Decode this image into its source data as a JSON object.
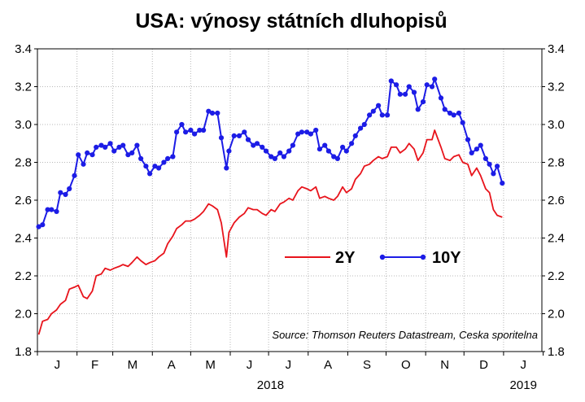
{
  "chart_data": {
    "type": "line",
    "title": "USA: výnosy státních dluhopisů",
    "source": "Source: Thomson Reuters Datastream, Ceska sporitelna",
    "x_month_labels": [
      "J",
      "F",
      "M",
      "A",
      "M",
      "J",
      "J",
      "A",
      "S",
      "O",
      "N",
      "D",
      "J"
    ],
    "year_labels": [
      "2018",
      "2019"
    ],
    "y_ticks": [
      "1.8",
      "2.0",
      "2.2",
      "2.4",
      "2.6",
      "2.8",
      "3.0",
      "3.2",
      "3.4"
    ],
    "ylim": [
      1.8,
      3.4
    ],
    "xlim": [
      "2018-01-01",
      "2019-01-31"
    ],
    "grid": true,
    "legend_position": "center-right",
    "series": [
      {
        "name": "2Y",
        "color": "#e8141c",
        "markers": false,
        "points": [
          [
            "2018-01-02",
            1.89
          ],
          [
            "2018-01-05",
            1.96
          ],
          [
            "2018-01-09",
            1.97
          ],
          [
            "2018-01-12",
            2.0
          ],
          [
            "2018-01-16",
            2.02
          ],
          [
            "2018-01-19",
            2.05
          ],
          [
            "2018-01-23",
            2.07
          ],
          [
            "2018-01-26",
            2.13
          ],
          [
            "2018-01-30",
            2.14
          ],
          [
            "2018-02-02",
            2.15
          ],
          [
            "2018-02-06",
            2.09
          ],
          [
            "2018-02-09",
            2.08
          ],
          [
            "2018-02-13",
            2.12
          ],
          [
            "2018-02-16",
            2.2
          ],
          [
            "2018-02-20",
            2.21
          ],
          [
            "2018-02-23",
            2.24
          ],
          [
            "2018-02-27",
            2.23
          ],
          [
            "2018-03-02",
            2.24
          ],
          [
            "2018-03-06",
            2.25
          ],
          [
            "2018-03-09",
            2.26
          ],
          [
            "2018-03-13",
            2.25
          ],
          [
            "2018-03-16",
            2.27
          ],
          [
            "2018-03-20",
            2.3
          ],
          [
            "2018-03-23",
            2.28
          ],
          [
            "2018-03-27",
            2.26
          ],
          [
            "2018-03-30",
            2.27
          ],
          [
            "2018-04-03",
            2.28
          ],
          [
            "2018-04-06",
            2.3
          ],
          [
            "2018-04-10",
            2.32
          ],
          [
            "2018-04-13",
            2.37
          ],
          [
            "2018-04-17",
            2.41
          ],
          [
            "2018-04-20",
            2.45
          ],
          [
            "2018-04-24",
            2.47
          ],
          [
            "2018-04-27",
            2.49
          ],
          [
            "2018-05-01",
            2.49
          ],
          [
            "2018-05-04",
            2.5
          ],
          [
            "2018-05-08",
            2.52
          ],
          [
            "2018-05-11",
            2.54
          ],
          [
            "2018-05-15",
            2.58
          ],
          [
            "2018-05-18",
            2.57
          ],
          [
            "2018-05-22",
            2.55
          ],
          [
            "2018-05-25",
            2.48
          ],
          [
            "2018-05-29",
            2.3
          ],
          [
            "2018-05-31",
            2.43
          ],
          [
            "2018-06-04",
            2.48
          ],
          [
            "2018-06-08",
            2.51
          ],
          [
            "2018-06-12",
            2.53
          ],
          [
            "2018-06-15",
            2.56
          ],
          [
            "2018-06-19",
            2.55
          ],
          [
            "2018-06-22",
            2.55
          ],
          [
            "2018-06-26",
            2.53
          ],
          [
            "2018-06-29",
            2.52
          ],
          [
            "2018-07-03",
            2.55
          ],
          [
            "2018-07-06",
            2.54
          ],
          [
            "2018-07-10",
            2.58
          ],
          [
            "2018-07-13",
            2.59
          ],
          [
            "2018-07-17",
            2.61
          ],
          [
            "2018-07-20",
            2.6
          ],
          [
            "2018-07-24",
            2.65
          ],
          [
            "2018-07-27",
            2.67
          ],
          [
            "2018-07-31",
            2.66
          ],
          [
            "2018-08-03",
            2.65
          ],
          [
            "2018-08-07",
            2.67
          ],
          [
            "2018-08-10",
            2.61
          ],
          [
            "2018-08-14",
            2.62
          ],
          [
            "2018-08-17",
            2.61
          ],
          [
            "2018-08-21",
            2.6
          ],
          [
            "2018-08-24",
            2.62
          ],
          [
            "2018-08-28",
            2.67
          ],
          [
            "2018-08-31",
            2.64
          ],
          [
            "2018-09-04",
            2.66
          ],
          [
            "2018-09-07",
            2.71
          ],
          [
            "2018-09-11",
            2.74
          ],
          [
            "2018-09-14",
            2.78
          ],
          [
            "2018-09-18",
            2.79
          ],
          [
            "2018-09-21",
            2.81
          ],
          [
            "2018-09-25",
            2.83
          ],
          [
            "2018-09-28",
            2.82
          ],
          [
            "2018-10-02",
            2.83
          ],
          [
            "2018-10-05",
            2.88
          ],
          [
            "2018-10-09",
            2.88
          ],
          [
            "2018-10-12",
            2.85
          ],
          [
            "2018-10-16",
            2.87
          ],
          [
            "2018-10-19",
            2.9
          ],
          [
            "2018-10-23",
            2.87
          ],
          [
            "2018-10-26",
            2.81
          ],
          [
            "2018-10-30",
            2.85
          ],
          [
            "2018-11-02",
            2.92
          ],
          [
            "2018-11-06",
            2.92
          ],
          [
            "2018-11-08",
            2.97
          ],
          [
            "2018-11-13",
            2.88
          ],
          [
            "2018-11-16",
            2.82
          ],
          [
            "2018-11-20",
            2.81
          ],
          [
            "2018-11-23",
            2.83
          ],
          [
            "2018-11-27",
            2.84
          ],
          [
            "2018-11-30",
            2.8
          ],
          [
            "2018-12-04",
            2.79
          ],
          [
            "2018-12-07",
            2.73
          ],
          [
            "2018-12-11",
            2.77
          ],
          [
            "2018-12-14",
            2.73
          ],
          [
            "2018-12-18",
            2.66
          ],
          [
            "2018-12-21",
            2.64
          ],
          [
            "2018-12-24",
            2.55
          ],
          [
            "2018-12-27",
            2.52
          ],
          [
            "2018-12-31",
            2.51
          ]
        ]
      },
      {
        "name": "10Y",
        "color": "#1c1ce6",
        "markers": true,
        "points": [
          [
            "2018-01-02",
            2.46
          ],
          [
            "2018-01-05",
            2.47
          ],
          [
            "2018-01-09",
            2.55
          ],
          [
            "2018-01-12",
            2.55
          ],
          [
            "2018-01-16",
            2.54
          ],
          [
            "2018-01-19",
            2.64
          ],
          [
            "2018-01-23",
            2.63
          ],
          [
            "2018-01-26",
            2.66
          ],
          [
            "2018-01-30",
            2.73
          ],
          [
            "2018-02-02",
            2.84
          ],
          [
            "2018-02-06",
            2.79
          ],
          [
            "2018-02-09",
            2.85
          ],
          [
            "2018-02-13",
            2.84
          ],
          [
            "2018-02-16",
            2.88
          ],
          [
            "2018-02-20",
            2.89
          ],
          [
            "2018-02-23",
            2.88
          ],
          [
            "2018-02-27",
            2.9
          ],
          [
            "2018-03-02",
            2.86
          ],
          [
            "2018-03-06",
            2.88
          ],
          [
            "2018-03-09",
            2.89
          ],
          [
            "2018-03-13",
            2.84
          ],
          [
            "2018-03-16",
            2.85
          ],
          [
            "2018-03-20",
            2.89
          ],
          [
            "2018-03-23",
            2.82
          ],
          [
            "2018-03-27",
            2.78
          ],
          [
            "2018-03-30",
            2.74
          ],
          [
            "2018-04-03",
            2.78
          ],
          [
            "2018-04-06",
            2.77
          ],
          [
            "2018-04-10",
            2.8
          ],
          [
            "2018-04-13",
            2.82
          ],
          [
            "2018-04-17",
            2.83
          ],
          [
            "2018-04-20",
            2.96
          ],
          [
            "2018-04-24",
            3.0
          ],
          [
            "2018-04-27",
            2.96
          ],
          [
            "2018-05-01",
            2.97
          ],
          [
            "2018-05-04",
            2.95
          ],
          [
            "2018-05-08",
            2.97
          ],
          [
            "2018-05-11",
            2.97
          ],
          [
            "2018-05-15",
            3.07
          ],
          [
            "2018-05-18",
            3.06
          ],
          [
            "2018-05-22",
            3.06
          ],
          [
            "2018-05-25",
            2.93
          ],
          [
            "2018-05-29",
            2.77
          ],
          [
            "2018-05-31",
            2.86
          ],
          [
            "2018-06-04",
            2.94
          ],
          [
            "2018-06-08",
            2.94
          ],
          [
            "2018-06-12",
            2.96
          ],
          [
            "2018-06-15",
            2.92
          ],
          [
            "2018-06-19",
            2.89
          ],
          [
            "2018-06-22",
            2.9
          ],
          [
            "2018-06-26",
            2.88
          ],
          [
            "2018-06-29",
            2.86
          ],
          [
            "2018-07-03",
            2.83
          ],
          [
            "2018-07-06",
            2.82
          ],
          [
            "2018-07-10",
            2.85
          ],
          [
            "2018-07-13",
            2.83
          ],
          [
            "2018-07-17",
            2.86
          ],
          [
            "2018-07-20",
            2.89
          ],
          [
            "2018-07-24",
            2.95
          ],
          [
            "2018-07-27",
            2.96
          ],
          [
            "2018-07-31",
            2.96
          ],
          [
            "2018-08-03",
            2.95
          ],
          [
            "2018-08-07",
            2.97
          ],
          [
            "2018-08-10",
            2.87
          ],
          [
            "2018-08-14",
            2.89
          ],
          [
            "2018-08-17",
            2.86
          ],
          [
            "2018-08-21",
            2.83
          ],
          [
            "2018-08-24",
            2.82
          ],
          [
            "2018-08-28",
            2.88
          ],
          [
            "2018-08-31",
            2.86
          ],
          [
            "2018-09-04",
            2.9
          ],
          [
            "2018-09-07",
            2.94
          ],
          [
            "2018-09-11",
            2.98
          ],
          [
            "2018-09-14",
            3.0
          ],
          [
            "2018-09-18",
            3.05
          ],
          [
            "2018-09-21",
            3.07
          ],
          [
            "2018-09-25",
            3.1
          ],
          [
            "2018-09-28",
            3.05
          ],
          [
            "2018-10-02",
            3.05
          ],
          [
            "2018-10-05",
            3.23
          ],
          [
            "2018-10-09",
            3.21
          ],
          [
            "2018-10-12",
            3.16
          ],
          [
            "2018-10-16",
            3.16
          ],
          [
            "2018-10-19",
            3.2
          ],
          [
            "2018-10-23",
            3.17
          ],
          [
            "2018-10-26",
            3.08
          ],
          [
            "2018-10-30",
            3.12
          ],
          [
            "2018-11-02",
            3.21
          ],
          [
            "2018-11-06",
            3.2
          ],
          [
            "2018-11-08",
            3.24
          ],
          [
            "2018-11-13",
            3.14
          ],
          [
            "2018-11-16",
            3.08
          ],
          [
            "2018-11-20",
            3.06
          ],
          [
            "2018-11-23",
            3.05
          ],
          [
            "2018-11-27",
            3.06
          ],
          [
            "2018-11-30",
            3.01
          ],
          [
            "2018-12-04",
            2.92
          ],
          [
            "2018-12-07",
            2.85
          ],
          [
            "2018-12-11",
            2.87
          ],
          [
            "2018-12-14",
            2.89
          ],
          [
            "2018-12-18",
            2.82
          ],
          [
            "2018-12-21",
            2.79
          ],
          [
            "2018-12-24",
            2.74
          ],
          [
            "2018-12-27",
            2.78
          ],
          [
            "2018-12-31",
            2.69
          ]
        ]
      }
    ]
  }
}
